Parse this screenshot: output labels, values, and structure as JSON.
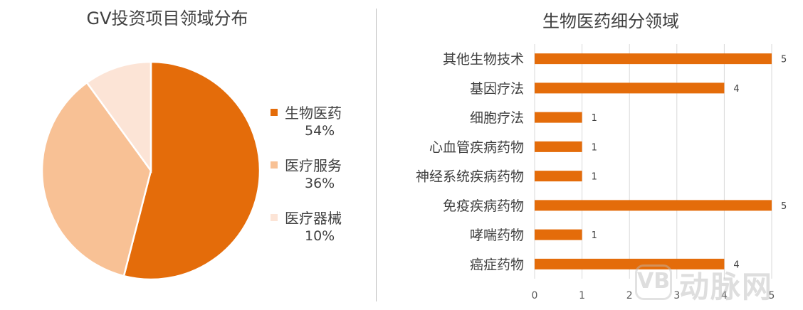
{
  "chart_data": [
    {
      "type": "pie",
      "title": "GV投资项目领域分布",
      "slices": [
        {
          "label": "生物医药",
          "value": 54,
          "value_label": "54%",
          "color": "#E46C0A"
        },
        {
          "label": "医疗服务",
          "value": 36,
          "value_label": "36%",
          "color": "#F8C195"
        },
        {
          "label": "医疗器械",
          "value": 10,
          "value_label": "10%",
          "color": "#FCE4D6"
        }
      ],
      "legend": "right"
    },
    {
      "type": "bar",
      "orientation": "horizontal",
      "title": "生物医药细分领域",
      "categories": [
        "其他生物技术",
        "基因疗法",
        "细胞疗法",
        "心血管疾病药物",
        "神经系统疾病药物",
        "免疫疾病药物",
        "哮喘药物",
        "癌症药物"
      ],
      "values": [
        5,
        4,
        1,
        1,
        1,
        5,
        1,
        4
      ],
      "xlim": [
        0,
        5
      ],
      "x_ticks": [
        "0",
        "1",
        "2",
        "3",
        "4",
        "5"
      ],
      "grid": true,
      "color": "#E46C0A"
    }
  ],
  "watermark": {
    "logo": "VB",
    "text": "动脉网"
  }
}
